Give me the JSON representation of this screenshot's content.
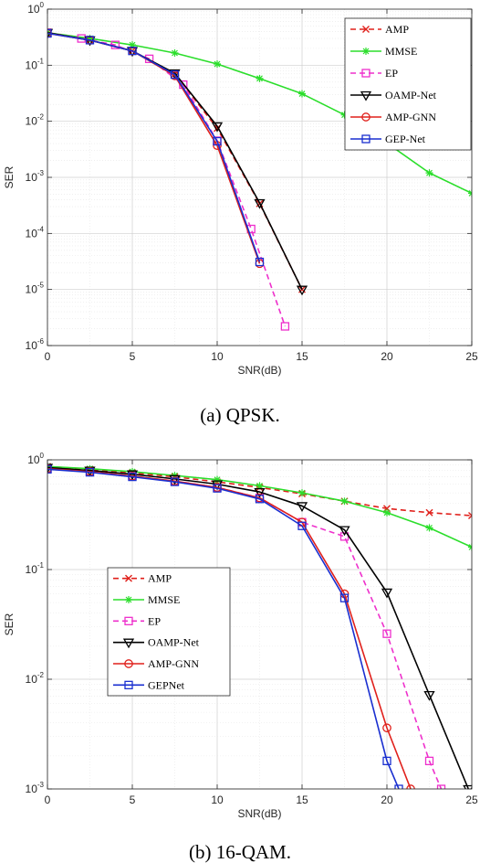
{
  "charts": [
    {
      "type": "line",
      "caption": "(a) QPSK.",
      "xlabel": "SNR(dB)",
      "ylabel": "SER",
      "xlim": [
        0,
        25
      ],
      "ylim_exp": [
        -6,
        0
      ],
      "yscale": "log",
      "grid": true,
      "xticks": [
        0,
        5,
        10,
        15,
        20,
        25
      ],
      "legend_position": "top-right",
      "series": [
        {
          "name": "AMP",
          "color": "#e0201b",
          "dash": "6,4",
          "marker": "x",
          "x": [
            0,
            2.5,
            5,
            7.5,
            10,
            12.5,
            15
          ],
          "y": [
            0.38,
            0.28,
            0.18,
            0.07,
            0.0075,
            0.00034,
            1e-05
          ]
        },
        {
          "name": "MMSE",
          "color": "#2bde2b",
          "dash": "",
          "marker": "star",
          "x": [
            0,
            2.5,
            5,
            7.5,
            10,
            12.5,
            15,
            17.5,
            20,
            22.5,
            25
          ],
          "y": [
            0.38,
            0.3,
            0.23,
            0.165,
            0.105,
            0.058,
            0.031,
            0.013,
            0.0041,
            0.0012,
            0.00052
          ]
        },
        {
          "name": "EP",
          "color": "#ee30cc",
          "dash": "6,4",
          "marker": "square",
          "x": [
            0,
            2,
            4,
            6,
            8,
            10,
            12,
            14
          ],
          "y": [
            0.38,
            0.3,
            0.23,
            0.13,
            0.045,
            0.0045,
            0.00012,
            2.2e-06
          ]
        },
        {
          "name": "OAMP-Net",
          "color": "#000000",
          "dash": "",
          "marker": "triangle",
          "x": [
            0,
            2.5,
            5,
            7.5,
            10,
            12.5,
            15
          ],
          "y": [
            0.38,
            0.28,
            0.18,
            0.072,
            0.0082,
            0.00035,
            1e-05
          ]
        },
        {
          "name": "AMP-GNN",
          "color": "#e0201b",
          "dash": "",
          "marker": "circle",
          "x": [
            0,
            2.5,
            5,
            7.5,
            10,
            12.5
          ],
          "y": [
            0.37,
            0.28,
            0.18,
            0.065,
            0.0037,
            2.9e-05
          ]
        },
        {
          "name": "GEP-Net",
          "color": "#1a2fd0",
          "dash": "",
          "marker": "square",
          "x": [
            0,
            2.5,
            5,
            7.5,
            10,
            12.5
          ],
          "y": [
            0.37,
            0.28,
            0.18,
            0.068,
            0.0044,
            3.1e-05
          ]
        }
      ]
    },
    {
      "type": "line",
      "caption": "(b) 16-QAM.",
      "xlabel": "SNR(dB)",
      "ylabel": "SER",
      "xlim": [
        0,
        25
      ],
      "ylim_exp": [
        -3,
        0
      ],
      "yscale": "log",
      "grid": true,
      "xticks": [
        0,
        5,
        10,
        15,
        20,
        25
      ],
      "legend_position": "middle-left",
      "series": [
        {
          "name": "AMP",
          "color": "#e0201b",
          "dash": "6,4",
          "marker": "x",
          "x": [
            0,
            2.5,
            5,
            7.5,
            10,
            12.5,
            15,
            17.5,
            20,
            22.5,
            25
          ],
          "y": [
            0.87,
            0.82,
            0.76,
            0.7,
            0.63,
            0.56,
            0.49,
            0.42,
            0.36,
            0.33,
            0.31
          ]
        },
        {
          "name": "MMSE",
          "color": "#2bde2b",
          "dash": "",
          "marker": "star",
          "x": [
            0,
            2.5,
            5,
            7.5,
            10,
            12.5,
            15,
            17.5,
            20,
            22.5,
            25
          ],
          "y": [
            0.87,
            0.83,
            0.78,
            0.72,
            0.66,
            0.58,
            0.5,
            0.42,
            0.33,
            0.24,
            0.16
          ]
        },
        {
          "name": "EP",
          "color": "#ee30cc",
          "dash": "6,4",
          "marker": "square",
          "x": [
            0,
            2.5,
            5,
            7.5,
            10,
            12.5,
            15,
            17.5,
            20,
            22.5,
            23.2
          ],
          "y": [
            0.83,
            0.78,
            0.71,
            0.64,
            0.56,
            0.45,
            0.27,
            0.2,
            0.026,
            0.0018,
            0.001
          ]
        },
        {
          "name": "OAMP-Net",
          "color": "#000000",
          "dash": "",
          "marker": "triangle",
          "x": [
            0,
            2.5,
            5,
            7.5,
            10,
            12.5,
            15,
            17.5,
            20,
            22.5,
            24.8
          ],
          "y": [
            0.85,
            0.8,
            0.74,
            0.67,
            0.6,
            0.51,
            0.38,
            0.23,
            0.062,
            0.0072,
            0.001
          ]
        },
        {
          "name": "AMP-GNN",
          "color": "#e0201b",
          "dash": "",
          "marker": "circle",
          "x": [
            0,
            2.5,
            5,
            7.5,
            10,
            12.5,
            15,
            17.5,
            20,
            21.4
          ],
          "y": [
            0.83,
            0.78,
            0.71,
            0.64,
            0.56,
            0.45,
            0.27,
            0.06,
            0.0036,
            0.001
          ]
        },
        {
          "name": "GEPNet",
          "color": "#1a2fd0",
          "dash": "",
          "marker": "square",
          "x": [
            0,
            2.5,
            5,
            7.5,
            10,
            12.5,
            15,
            17.5,
            20,
            20.7
          ],
          "y": [
            0.82,
            0.77,
            0.7,
            0.63,
            0.55,
            0.44,
            0.25,
            0.055,
            0.0018,
            0.001
          ]
        }
      ]
    }
  ]
}
